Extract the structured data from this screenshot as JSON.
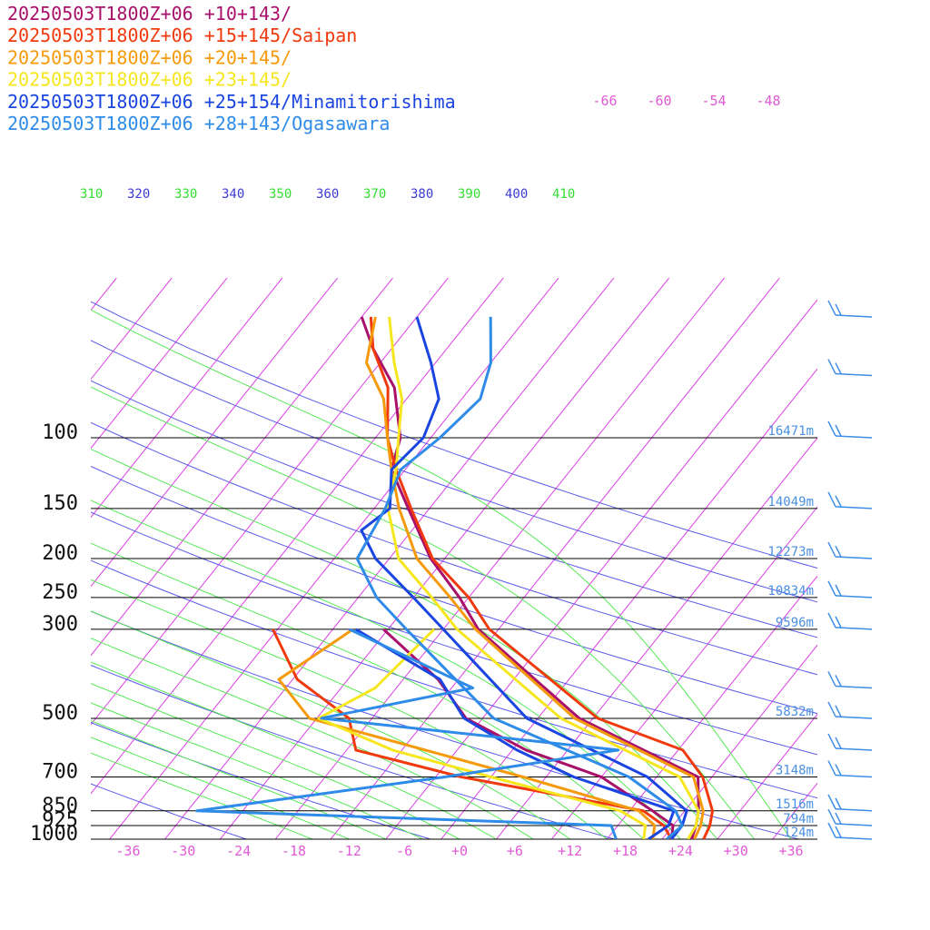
{
  "chart_data": {
    "type": "line",
    "title": "",
    "xlabel": "",
    "ylabel": "",
    "pressure_levels": [
      {
        "p": 100,
        "label": "100",
        "height": "16471m"
      },
      {
        "p": 150,
        "label": "150",
        "height": "14049m"
      },
      {
        "p": 200,
        "label": "200",
        "height": "12273m"
      },
      {
        "p": 250,
        "label": "250",
        "height": "10834m"
      },
      {
        "p": 300,
        "label": "300",
        "height": "9596m"
      },
      {
        "p": 500,
        "label": "500",
        "height": "5832m"
      },
      {
        "p": 700,
        "label": "700",
        "height": "3148m"
      },
      {
        "p": 850,
        "label": "850",
        "height": "1516m"
      },
      {
        "p": 925,
        "label": "925",
        "height": "794m"
      },
      {
        "p": 1000,
        "label": "1000",
        "height": "124m"
      }
    ],
    "x_ticks": [
      "-36",
      "-30",
      "-24",
      "-18",
      "-12",
      "-6",
      "+0",
      "+6",
      "+12",
      "+18",
      "+24",
      "+30",
      "+36"
    ],
    "x_tick_values": [
      -36,
      -30,
      -24,
      -18,
      -12,
      -6,
      0,
      6,
      12,
      18,
      24,
      30,
      36
    ],
    "upper_ticks": [
      "-66",
      "-60",
      "-54",
      "-48"
    ],
    "theta_labels": [
      {
        "text": "310",
        "color": "#33dd33"
      },
      {
        "text": "320",
        "color": "#3b3bd6"
      },
      {
        "text": "330",
        "color": "#33dd33"
      },
      {
        "text": "340",
        "color": "#3b3bd6"
      },
      {
        "text": "350",
        "color": "#33dd33"
      },
      {
        "text": "360",
        "color": "#3b3bd6"
      },
      {
        "text": "370",
        "color": "#33dd33"
      },
      {
        "text": "380",
        "color": "#3b3bd6"
      },
      {
        "text": "390",
        "color": "#33dd33"
      },
      {
        "text": "400",
        "color": "#3b3bd6"
      },
      {
        "text": "410",
        "color": "#33dd33"
      }
    ],
    "colors": {
      "isotherm": "#e03fe6",
      "dry_adiabat": "#5a5ae8",
      "moist_adiabat": "#55e855",
      "height_label": "#4a90e2",
      "wind_barb": "#3d8ee6",
      "axis_label": "#e05ad6"
    },
    "series": [
      {
        "name": "20250503T1800Z+06 +10+143/",
        "color": "#a8106a",
        "temperature": [
          [
            1000,
            25.2
          ],
          [
            925,
            24.5
          ],
          [
            850,
            23.5
          ],
          [
            700,
            20.5
          ],
          [
            500,
            2.5
          ],
          [
            300,
            -16.2
          ],
          [
            250,
            -21.0
          ],
          [
            200,
            -27.5
          ],
          [
            150,
            -34.3
          ],
          [
            120,
            -39.5
          ],
          [
            100,
            -41.3
          ],
          [
            75,
            -46.3
          ],
          [
            60,
            -52.0
          ],
          [
            50,
            -56.0
          ]
        ],
        "dewpoint": [
          [
            1000,
            23.0
          ],
          [
            925,
            22.0
          ],
          [
            850,
            18.5
          ],
          [
            700,
            10.0
          ],
          [
            600,
            -0.5
          ],
          [
            500,
            -9.8
          ],
          [
            400,
            -16.2
          ],
          [
            300,
            -26.5
          ]
        ]
      },
      {
        "name": "20250503T1800Z+06 +15+145/Saipan",
        "color": "#f03a0e",
        "temperature": [
          [
            1000,
            26.5
          ],
          [
            925,
            26.0
          ],
          [
            850,
            25.0
          ],
          [
            700,
            21.0
          ],
          [
            600,
            16.5
          ],
          [
            500,
            4.5
          ],
          [
            300,
            -15.0
          ],
          [
            250,
            -20.0
          ],
          [
            200,
            -27.3
          ],
          [
            150,
            -34.0
          ],
          [
            120,
            -39.0
          ],
          [
            100,
            -42.7
          ],
          [
            75,
            -47.0
          ],
          [
            60,
            -52.0
          ],
          [
            50,
            -55.0
          ]
        ],
        "dewpoint": [
          [
            1000,
            23.0
          ],
          [
            925,
            21.0
          ],
          [
            850,
            17.5
          ],
          [
            700,
            -5.2
          ],
          [
            600,
            -19.0
          ],
          [
            500,
            -22.5
          ],
          [
            400,
            -31.5
          ],
          [
            300,
            -38.5
          ]
        ]
      },
      {
        "name": "20250503T1800Z+06 +20+145/",
        "color": "#f59a0a",
        "temperature": [
          [
            1000,
            25.5
          ],
          [
            925,
            25.0
          ],
          [
            850,
            24.0
          ],
          [
            700,
            20.0
          ],
          [
            500,
            2.0
          ],
          [
            300,
            -16.5
          ],
          [
            250,
            -22.0
          ],
          [
            200,
            -29.0
          ],
          [
            150,
            -35.3
          ],
          [
            120,
            -39.5
          ],
          [
            100,
            -42.7
          ],
          [
            80,
            -46.5
          ],
          [
            65,
            -51.5
          ],
          [
            50,
            -54.5
          ]
        ],
        "dewpoint": [
          [
            1000,
            21.0
          ],
          [
            925,
            20.0
          ],
          [
            850,
            17.0
          ],
          [
            700,
            1.5
          ],
          [
            500,
            -26.8
          ],
          [
            400,
            -33.5
          ],
          [
            300,
            -29.8
          ]
        ]
      },
      {
        "name": "20250503T1800Z+06 +23+145/",
        "color": "#f5e61e",
        "temperature": [
          [
            1000,
            24.8
          ],
          [
            925,
            24.5
          ],
          [
            850,
            23.5
          ],
          [
            700,
            18.5
          ],
          [
            500,
            0.5
          ],
          [
            300,
            -18.5
          ],
          [
            250,
            -24.0
          ],
          [
            200,
            -31.0
          ],
          [
            150,
            -36.5
          ],
          [
            120,
            -39.0
          ],
          [
            100,
            -41.5
          ],
          [
            80,
            -44.5
          ],
          [
            65,
            -48.5
          ],
          [
            50,
            -53.0
          ]
        ],
        "dewpoint": [
          [
            1000,
            20.0
          ],
          [
            925,
            19.0
          ],
          [
            850,
            15.0
          ],
          [
            700,
            -2.0
          ],
          [
            600,
            -15.0
          ],
          [
            500,
            -25.8
          ],
          [
            420,
            -22.3
          ],
          [
            300,
            -21.0
          ]
        ]
      },
      {
        "name": "20250503T1800Z+06 +25+154/Minamitorishima",
        "color": "#1a45e0",
        "temperature": [
          [
            1000,
            23.0
          ],
          [
            925,
            23.0
          ],
          [
            850,
            22.2
          ],
          [
            700,
            15.0
          ],
          [
            500,
            -3.2
          ],
          [
            300,
            -20.0
          ],
          [
            250,
            -26.0
          ],
          [
            200,
            -33.5
          ],
          [
            170,
            -37.5
          ],
          [
            150,
            -36.3
          ],
          [
            120,
            -39.5
          ],
          [
            100,
            -38.8
          ],
          [
            80,
            -40.5
          ],
          [
            65,
            -44.5
          ],
          [
            50,
            -50.0
          ]
        ],
        "dewpoint": [
          [
            1000,
            20.5
          ],
          [
            925,
            21.5
          ],
          [
            850,
            20.8
          ],
          [
            700,
            7.0
          ],
          [
            600,
            -1.5
          ],
          [
            500,
            -10.0
          ],
          [
            400,
            -16.0
          ],
          [
            300,
            -29.5
          ]
        ]
      },
      {
        "name": "20250503T1800Z+06 +28+143/Ogasawara",
        "color": "#2e8be8",
        "temperature": [
          [
            1000,
            22.5
          ],
          [
            925,
            23.0
          ],
          [
            850,
            21.0
          ],
          [
            700,
            13.0
          ],
          [
            500,
            -6.8
          ],
          [
            300,
            -24.0
          ],
          [
            250,
            -30.0
          ],
          [
            200,
            -35.5
          ],
          [
            150,
            -36.8
          ],
          [
            120,
            -38.5
          ],
          [
            100,
            -37.0
          ],
          [
            80,
            -36.0
          ],
          [
            65,
            -38.0
          ],
          [
            50,
            -42.0
          ]
        ],
        "dewpoint": [
          [
            1000,
            17.0
          ],
          [
            925,
            15.3
          ],
          [
            850,
            -31.0
          ],
          [
            700,
            -7.0
          ],
          [
            600,
            9.5
          ],
          [
            500,
            -25.5
          ],
          [
            420,
            -11.7
          ],
          [
            300,
            -30.2
          ]
        ]
      }
    ],
    "wind_barb_levels": [
      50,
      70,
      100,
      150,
      200,
      250,
      300,
      420,
      500,
      600,
      700,
      850,
      925,
      1000
    ]
  }
}
